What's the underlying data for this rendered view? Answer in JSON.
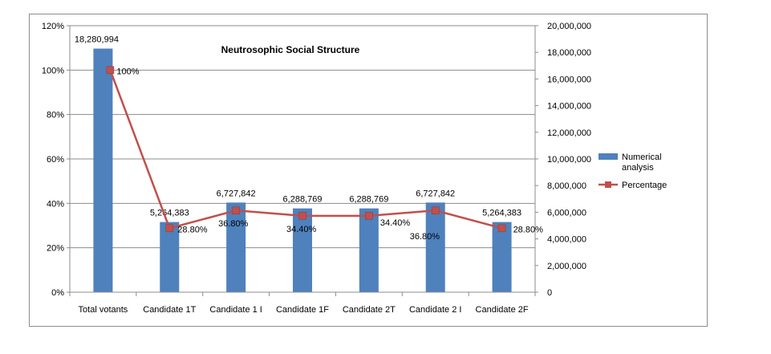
{
  "chart_data": {
    "type": "bar",
    "title": "Neutrosophic Social Structure",
    "categories": [
      "Total votants",
      "Candidate 1T",
      "Candidate 1 I",
      "Candidate 1F",
      "Candidate 2T",
      "Candidate 2 I",
      "Candidate 2F"
    ],
    "series": [
      {
        "name": "Numerical analysis",
        "type": "bar",
        "axis": "right",
        "color": "#4f81bd",
        "values": [
          18280994,
          5264383,
          6727842,
          6288769,
          6288769,
          6727842,
          5264383
        ],
        "labels": [
          "18,280,994",
          "5,264,383",
          "6,727,842",
          "6,288,769",
          "6,288,769",
          "6,727,842",
          "5,264,383"
        ]
      },
      {
        "name": "Percentage",
        "type": "line",
        "axis": "left",
        "color": "#c0504d",
        "values": [
          100,
          28.8,
          36.8,
          34.4,
          34.4,
          36.8,
          28.8
        ],
        "labels": [
          "100%",
          "28.80%",
          "36.80%",
          "34.40%",
          "34.40%",
          "36.80%",
          "28.80%"
        ]
      }
    ],
    "y_left": {
      "range": [
        0,
        120
      ],
      "ticks": [
        0,
        20,
        40,
        60,
        80,
        100,
        120
      ],
      "tick_labels": [
        "0%",
        "20%",
        "40%",
        "60%",
        "80%",
        "100%",
        "120%"
      ]
    },
    "y_right": {
      "range": [
        0,
        20000000
      ],
      "ticks": [
        0,
        2000000,
        4000000,
        6000000,
        8000000,
        10000000,
        12000000,
        14000000,
        16000000,
        18000000,
        20000000
      ],
      "tick_labels": [
        "0",
        "2,000,000",
        "4,000,000",
        "6,000,000",
        "8,000,000",
        "10,000,000",
        "12,000,000",
        "14,000,000",
        "16,000,000",
        "18,000,000",
        "20,000,000"
      ]
    },
    "xlabel": "",
    "ylabel": "",
    "grid": true,
    "legend": "right"
  }
}
